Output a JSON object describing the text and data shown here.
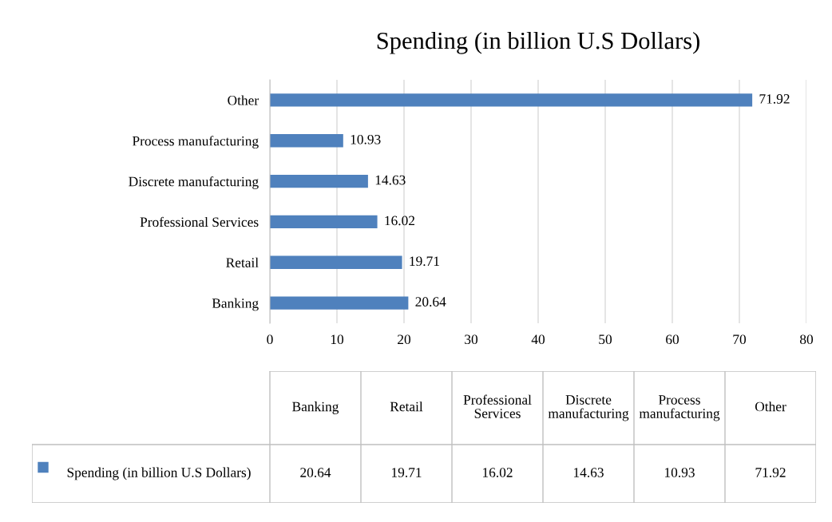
{
  "chart_data": {
    "type": "bar",
    "orientation": "horizontal",
    "title": "Spending (in billion U.S Dollars)",
    "categories": [
      "Other",
      "Process manufacturing",
      "Discrete manufacturing",
      "Professional Services",
      "Retail",
      "Banking"
    ],
    "series": [
      {
        "name": "Spending (in billion U.S Dollars)",
        "color": "#4f81bd",
        "values": [
          71.92,
          10.93,
          14.63,
          16.02,
          19.71,
          20.64
        ]
      }
    ],
    "annotations": [
      "20.64",
      "19.71",
      "16.02",
      "14.63",
      "10.93",
      "71.92"
    ],
    "xlim": [
      0,
      80
    ],
    "xticks": [
      0,
      10,
      20,
      30,
      40,
      50,
      60,
      70,
      80
    ],
    "grid": "x",
    "data_labels": true,
    "legend": "bottom"
  }
}
